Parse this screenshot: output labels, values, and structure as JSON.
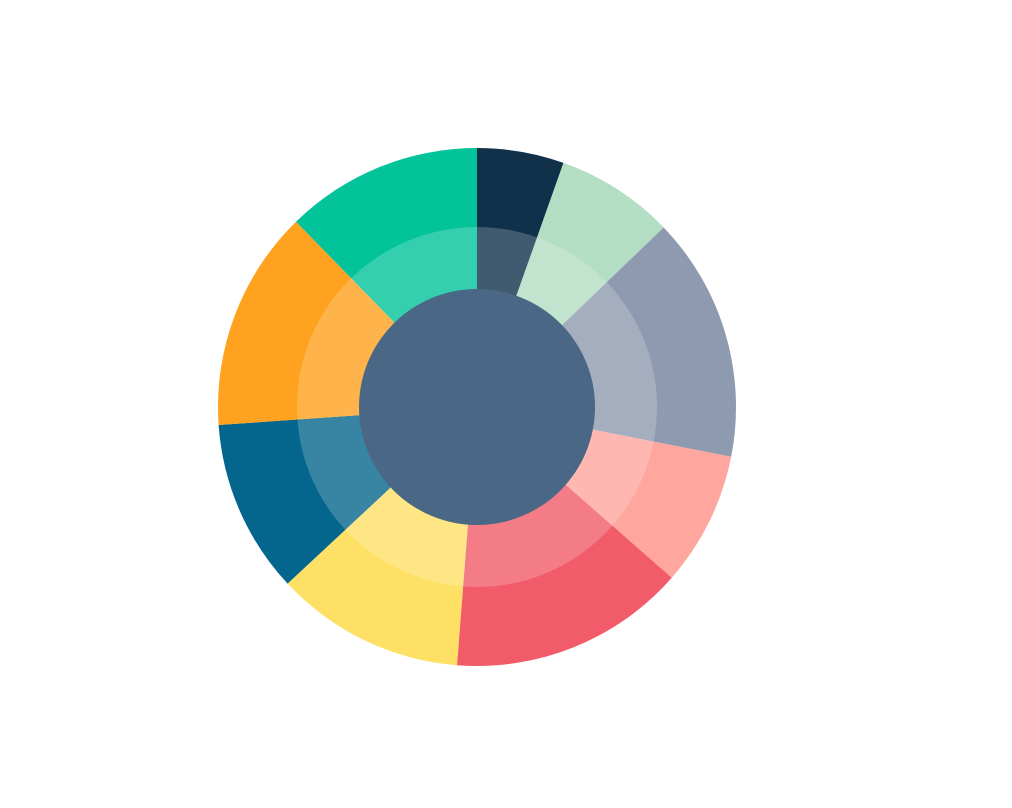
{
  "chart_data": {
    "type": "pie",
    "variant": "donut",
    "legend": "none",
    "center_color": "#4a6785",
    "inner_ring_overlay": "rgba(255,255,255,0.2)",
    "slices": [
      {
        "value": 5.5,
        "color": "#11314b"
      },
      {
        "value": 7.5,
        "color": "#b3dec4"
      },
      {
        "value": 15.5,
        "color": "#8e9aaf"
      },
      {
        "value": 8.5,
        "color": "#ffa69e"
      },
      {
        "value": 15.0,
        "color": "#f25c6a"
      },
      {
        "value": 12.0,
        "color": "#ffe066"
      },
      {
        "value": 11.0,
        "color": "#05668d"
      },
      {
        "value": 14.0,
        "color": "#ffa21f"
      },
      {
        "value": 12.5,
        "color": "#02c39a"
      }
    ]
  }
}
